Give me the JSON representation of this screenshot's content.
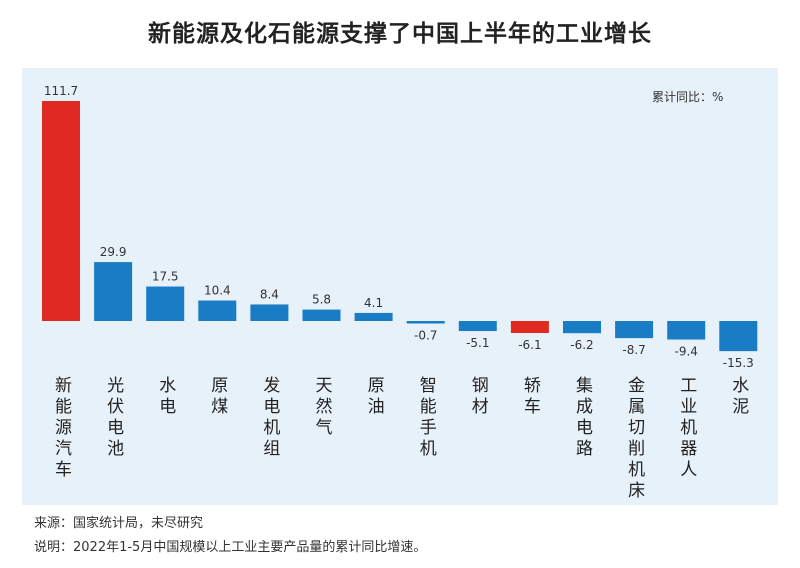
{
  "chart_data": {
    "type": "bar",
    "title": "新能源及化石能源支撑了中国上半年的工业增长",
    "unit_label": "累计同比：%",
    "categories": [
      "新能源汽车",
      "光伏电池",
      "水电",
      "原煤",
      "发电机组",
      "天然气",
      "原油",
      "智能手机",
      "钢材",
      "轿车",
      "集成电路",
      "金属切削机床",
      "工业机器人",
      "水泥"
    ],
    "values": [
      111.7,
      29.9,
      17.5,
      10.4,
      8.4,
      5.8,
      4.1,
      -0.7,
      -5.1,
      -6.1,
      -6.2,
      -8.7,
      -9.4,
      -15.3
    ],
    "highlight": [
      "新能源汽车",
      "轿车"
    ],
    "colors": {
      "default": "#1a7cc4",
      "highlight": "#e02a21"
    },
    "grid": false,
    "legend": "none"
  },
  "source": "来源：国家统计局，未尽研究",
  "note": "说明：2022年1-5月中国规模以上工业主要产品量的累计同比增速。"
}
